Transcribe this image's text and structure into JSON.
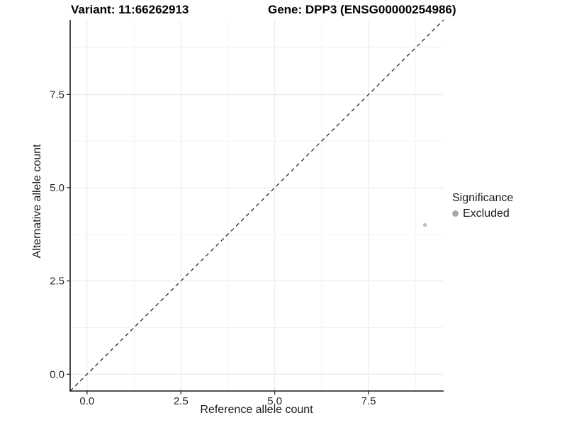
{
  "header": {
    "title_left": "Variant: 11:66262913",
    "title_right": "Gene: DPP3 (ENSG00000254986)"
  },
  "chart_data": {
    "type": "scatter",
    "title": "Variant: 11:66262913   Gene: DPP3 (ENSG00000254986)",
    "xlabel": "Reference allele count",
    "ylabel": "Alternative allele count",
    "xlim": [
      -0.45,
      9.5
    ],
    "ylim": [
      -0.45,
      9.5
    ],
    "x_ticks": [
      0.0,
      2.5,
      5.0,
      7.5
    ],
    "x_tick_labels": [
      "0.0",
      "2.5",
      "5.0",
      "7.5"
    ],
    "y_ticks": [
      0.0,
      2.5,
      5.0,
      7.5
    ],
    "y_tick_labels": [
      "0.0",
      "2.5",
      "5.0",
      "7.5"
    ],
    "minor_breaks": [
      1.25,
      3.75,
      6.25,
      8.75
    ],
    "grid": "major and minor, light gray on white",
    "series": [
      {
        "name": "Excluded",
        "points": [
          {
            "x": 9,
            "y": 4
          }
        ],
        "color": "#bdbdbd",
        "point_radius": 2.7
      }
    ],
    "abline": {
      "slope": 1,
      "intercept": 0,
      "style": "dashed",
      "color": "#1a1a1a"
    },
    "legend": {
      "position": "right",
      "title": "Significance",
      "items": [
        {
          "label": "Excluded",
          "color": "#a8a8a8"
        }
      ]
    },
    "colors": {
      "axis_line": "#1a1a1a",
      "tick_label": "#262626",
      "grid_major": "#e7e7e7",
      "grid_minor": "#f2f2f2",
      "background": "#ffffff"
    }
  }
}
